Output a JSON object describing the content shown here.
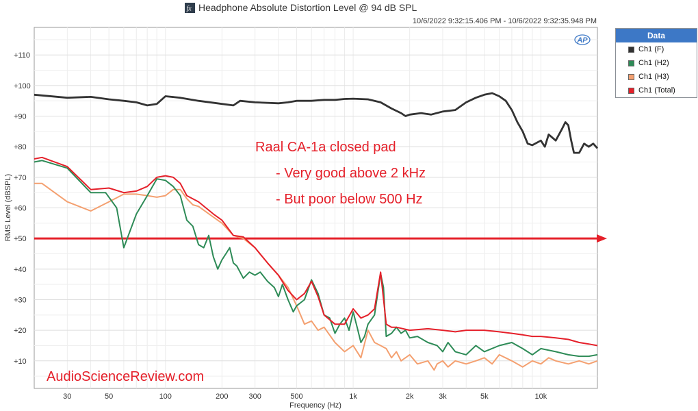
{
  "header": {
    "title": "Headphone Absolute Distortion Level @ 94 dB SPL",
    "timestamp": "10/6/2022 9:32:15.406 PM - 10/6/2022 9:32:35.948 PM",
    "fx_icon": "fx-icon"
  },
  "legend": {
    "title": "Data",
    "items": [
      {
        "label": "Ch1 (F)",
        "color": "#333333"
      },
      {
        "label": "Ch1 (H2)",
        "color": "#2e8b57"
      },
      {
        "label": "Ch1 (H3)",
        "color": "#f4a070"
      },
      {
        "label": "Ch1 (Total)",
        "color": "#e5202a"
      }
    ]
  },
  "annotation": {
    "lines": [
      "Raal CA-1a closed pad",
      "- Very good above 2 kHz",
      "- But poor below 500 Hz"
    ],
    "color": "#e5202a"
  },
  "watermark": "AudioScienceReview.com",
  "ap_logo": "AP",
  "chart_data": {
    "type": "line",
    "x_scale": "log",
    "xlabel": "Frequency (Hz)",
    "ylabel": "RMS Level (dBSPL)",
    "xlim": [
      20,
      20000
    ],
    "ylim": [
      1,
      119
    ],
    "x_ticks": [
      {
        "value": 30,
        "label": "30"
      },
      {
        "value": 50,
        "label": "50"
      },
      {
        "value": 100,
        "label": "100"
      },
      {
        "value": 200,
        "label": "200"
      },
      {
        "value": 300,
        "label": "300"
      },
      {
        "value": 500,
        "label": "500"
      },
      {
        "value": 1000,
        "label": "1k"
      },
      {
        "value": 2000,
        "label": "2k"
      },
      {
        "value": 3000,
        "label": "3k"
      },
      {
        "value": 5000,
        "label": "5k"
      },
      {
        "value": 10000,
        "label": "10k"
      }
    ],
    "y_ticks": [
      {
        "value": 10,
        "label": "+10"
      },
      {
        "value": 20,
        "label": "+20"
      },
      {
        "value": 30,
        "label": "+30"
      },
      {
        "value": 40,
        "label": "+40"
      },
      {
        "value": 50,
        "label": "+50"
      },
      {
        "value": 60,
        "label": "+60"
      },
      {
        "value": 70,
        "label": "+70"
      },
      {
        "value": 80,
        "label": "+80"
      },
      {
        "value": 90,
        "label": "+90"
      },
      {
        "value": 100,
        "label": "+100"
      },
      {
        "value": 110,
        "label": "+110"
      }
    ],
    "grid": true,
    "reference_line": {
      "y": 50,
      "color": "#e5202a",
      "arrow": true
    },
    "series": [
      {
        "name": "Ch1 (F)",
        "color": "#333333",
        "points": [
          [
            20,
            97
          ],
          [
            30,
            96
          ],
          [
            40,
            96.3
          ],
          [
            50,
            95.5
          ],
          [
            60,
            95
          ],
          [
            70,
            94.5
          ],
          [
            80,
            93.5
          ],
          [
            90,
            94
          ],
          [
            100,
            96.5
          ],
          [
            120,
            96
          ],
          [
            150,
            95
          ],
          [
            200,
            94
          ],
          [
            230,
            93.5
          ],
          [
            250,
            95
          ],
          [
            300,
            94.5
          ],
          [
            400,
            94.2
          ],
          [
            450,
            94.5
          ],
          [
            500,
            95
          ],
          [
            600,
            95
          ],
          [
            700,
            95.3
          ],
          [
            800,
            95.3
          ],
          [
            900,
            95.6
          ],
          [
            1000,
            95.7
          ],
          [
            1200,
            95.5
          ],
          [
            1400,
            94.5
          ],
          [
            1600,
            92.5
          ],
          [
            1800,
            91
          ],
          [
            1900,
            90
          ],
          [
            2000,
            90.5
          ],
          [
            2300,
            91
          ],
          [
            2600,
            90.5
          ],
          [
            3000,
            91.5
          ],
          [
            3500,
            92
          ],
          [
            4000,
            94.5
          ],
          [
            4500,
            96
          ],
          [
            5000,
            97
          ],
          [
            5500,
            97.5
          ],
          [
            6000,
            96.5
          ],
          [
            6500,
            95
          ],
          [
            7000,
            92
          ],
          [
            7500,
            88
          ],
          [
            8000,
            85
          ],
          [
            8500,
            81
          ],
          [
            9000,
            80.5
          ],
          [
            10000,
            82
          ],
          [
            10500,
            80
          ],
          [
            11000,
            84
          ],
          [
            12000,
            82
          ],
          [
            13000,
            86
          ],
          [
            13500,
            88
          ],
          [
            14000,
            87
          ],
          [
            14500,
            82
          ],
          [
            15000,
            78
          ],
          [
            16000,
            78
          ],
          [
            17000,
            81
          ],
          [
            18000,
            80
          ],
          [
            19000,
            81
          ],
          [
            20000,
            79.5
          ]
        ]
      },
      {
        "name": "Ch1 (H2)",
        "color": "#2e8b57",
        "points": [
          [
            20,
            75
          ],
          [
            22,
            75.5
          ],
          [
            30,
            73
          ],
          [
            40,
            65
          ],
          [
            48,
            65
          ],
          [
            55,
            60
          ],
          [
            60,
            47
          ],
          [
            70,
            58
          ],
          [
            80,
            64
          ],
          [
            90,
            69.5
          ],
          [
            100,
            69
          ],
          [
            110,
            67
          ],
          [
            120,
            64
          ],
          [
            130,
            56
          ],
          [
            140,
            54
          ],
          [
            150,
            48
          ],
          [
            160,
            47
          ],
          [
            170,
            51
          ],
          [
            180,
            44
          ],
          [
            190,
            40
          ],
          [
            200,
            43
          ],
          [
            210,
            45
          ],
          [
            220,
            47
          ],
          [
            230,
            42
          ],
          [
            240,
            41
          ],
          [
            260,
            37
          ],
          [
            280,
            39
          ],
          [
            300,
            38
          ],
          [
            320,
            39
          ],
          [
            350,
            36
          ],
          [
            380,
            34
          ],
          [
            400,
            31
          ],
          [
            420,
            35
          ],
          [
            450,
            30
          ],
          [
            480,
            26
          ],
          [
            500,
            28
          ],
          [
            550,
            30
          ],
          [
            600,
            36.5
          ],
          [
            650,
            32
          ],
          [
            700,
            25
          ],
          [
            750,
            24
          ],
          [
            800,
            19
          ],
          [
            850,
            22
          ],
          [
            900,
            24
          ],
          [
            950,
            20
          ],
          [
            1000,
            26
          ],
          [
            1050,
            21
          ],
          [
            1100,
            16
          ],
          [
            1150,
            18
          ],
          [
            1200,
            22
          ],
          [
            1300,
            25
          ],
          [
            1400,
            38.5
          ],
          [
            1450,
            34
          ],
          [
            1500,
            18
          ],
          [
            1600,
            19
          ],
          [
            1700,
            21
          ],
          [
            1800,
            19
          ],
          [
            1900,
            20
          ],
          [
            2000,
            17.5
          ],
          [
            2200,
            18
          ],
          [
            2500,
            16
          ],
          [
            2800,
            15
          ],
          [
            3000,
            13
          ],
          [
            3200,
            16
          ],
          [
            3500,
            13
          ],
          [
            4000,
            12
          ],
          [
            4500,
            15
          ],
          [
            5000,
            13
          ],
          [
            6000,
            15
          ],
          [
            7000,
            16
          ],
          [
            8000,
            14
          ],
          [
            9000,
            12
          ],
          [
            10000,
            14
          ],
          [
            12000,
            13
          ],
          [
            14000,
            12
          ],
          [
            16000,
            11.5
          ],
          [
            18000,
            11.5
          ],
          [
            20000,
            12
          ]
        ]
      },
      {
        "name": "Ch1 (H3)",
        "color": "#f4a070",
        "points": [
          [
            20,
            68
          ],
          [
            22,
            68
          ],
          [
            30,
            62
          ],
          [
            40,
            59
          ],
          [
            50,
            62
          ],
          [
            60,
            64.5
          ],
          [
            70,
            64.5
          ],
          [
            80,
            64
          ],
          [
            90,
            63.5
          ],
          [
            100,
            64
          ],
          [
            110,
            66
          ],
          [
            120,
            66
          ],
          [
            130,
            63
          ],
          [
            140,
            61
          ],
          [
            150,
            60.5
          ],
          [
            180,
            57
          ],
          [
            200,
            55
          ],
          [
            230,
            51
          ],
          [
            260,
            50
          ],
          [
            300,
            47
          ],
          [
            350,
            42
          ],
          [
            400,
            38
          ],
          [
            450,
            34
          ],
          [
            500,
            28
          ],
          [
            550,
            22
          ],
          [
            600,
            23
          ],
          [
            650,
            20
          ],
          [
            700,
            21
          ],
          [
            800,
            16
          ],
          [
            900,
            13
          ],
          [
            1000,
            15
          ],
          [
            1100,
            11
          ],
          [
            1200,
            20
          ],
          [
            1300,
            16
          ],
          [
            1400,
            15
          ],
          [
            1500,
            14
          ],
          [
            1600,
            11
          ],
          [
            1700,
            13
          ],
          [
            1800,
            10
          ],
          [
            2000,
            12
          ],
          [
            2200,
            9
          ],
          [
            2500,
            10
          ],
          [
            2700,
            7
          ],
          [
            2800,
            9
          ],
          [
            3000,
            10
          ],
          [
            3200,
            8
          ],
          [
            3500,
            10
          ],
          [
            4000,
            9
          ],
          [
            4500,
            10
          ],
          [
            5000,
            11
          ],
          [
            5500,
            9
          ],
          [
            6000,
            12
          ],
          [
            7000,
            10
          ],
          [
            8000,
            8
          ],
          [
            9000,
            10
          ],
          [
            10000,
            9
          ],
          [
            11000,
            11
          ],
          [
            12000,
            10
          ],
          [
            14000,
            9
          ],
          [
            16000,
            10
          ],
          [
            18000,
            9
          ],
          [
            20000,
            10
          ]
        ]
      },
      {
        "name": "Ch1 (Total)",
        "color": "#e5202a",
        "points": [
          [
            20,
            76
          ],
          [
            22,
            76.5
          ],
          [
            30,
            73.5
          ],
          [
            40,
            66
          ],
          [
            50,
            66.5
          ],
          [
            60,
            65
          ],
          [
            70,
            65.5
          ],
          [
            80,
            67
          ],
          [
            90,
            70
          ],
          [
            100,
            70.5
          ],
          [
            110,
            70
          ],
          [
            120,
            68
          ],
          [
            130,
            64
          ],
          [
            150,
            62
          ],
          [
            180,
            58
          ],
          [
            200,
            56
          ],
          [
            230,
            51
          ],
          [
            260,
            50.5
          ],
          [
            300,
            47
          ],
          [
            350,
            42
          ],
          [
            400,
            38
          ],
          [
            450,
            33
          ],
          [
            500,
            30
          ],
          [
            550,
            32
          ],
          [
            600,
            36
          ],
          [
            650,
            31
          ],
          [
            700,
            25
          ],
          [
            800,
            22
          ],
          [
            900,
            22
          ],
          [
            1000,
            27
          ],
          [
            1100,
            24
          ],
          [
            1200,
            25
          ],
          [
            1300,
            27
          ],
          [
            1400,
            39
          ],
          [
            1500,
            22
          ],
          [
            1600,
            21
          ],
          [
            1700,
            21
          ],
          [
            2000,
            20
          ],
          [
            2500,
            20.5
          ],
          [
            3000,
            20
          ],
          [
            3500,
            19.5
          ],
          [
            4000,
            20
          ],
          [
            5000,
            20
          ],
          [
            6000,
            19.5
          ],
          [
            7000,
            19
          ],
          [
            8000,
            18.5
          ],
          [
            9000,
            18
          ],
          [
            10000,
            18
          ],
          [
            12000,
            17.5
          ],
          [
            14000,
            17
          ],
          [
            16000,
            16
          ],
          [
            18000,
            15.5
          ],
          [
            20000,
            15
          ]
        ]
      }
    ]
  }
}
